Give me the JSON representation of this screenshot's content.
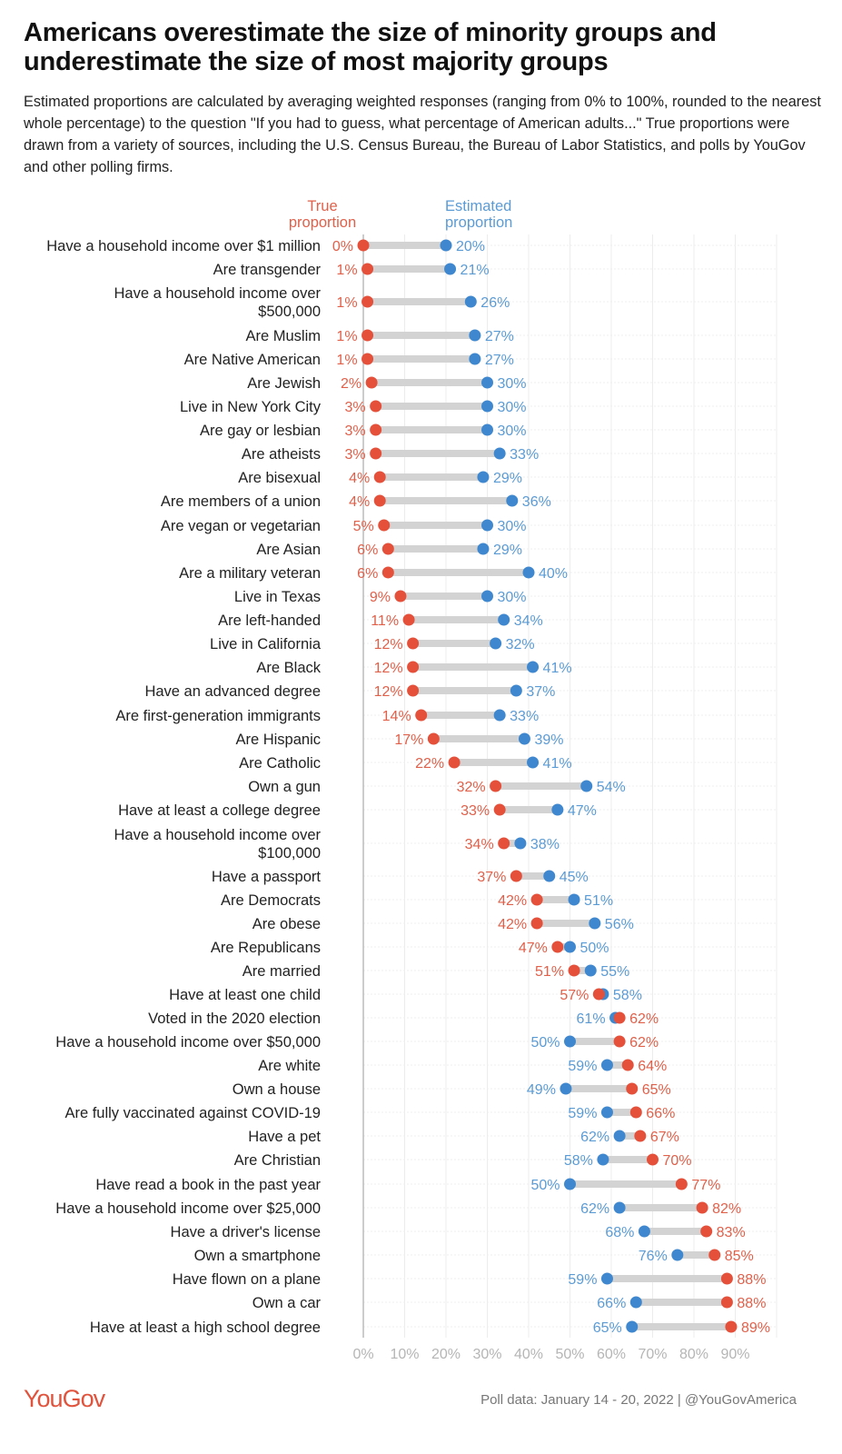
{
  "title": "Americans overestimate the size of minority groups and underestimate the size of most majority groups",
  "subtitle": "Estimated proportions are calculated by averaging weighted responses (ranging from 0% to 100%, rounded to the nearest whole percentage) to the question \"If you had to guess, what percentage of American adults...\" True proportions were drawn from a variety of sources, including the U.S. Census Bureau, the Bureau of Labor Statistics, and polls by YouGov and other polling firms.",
  "footer": {
    "logo": "YouGov",
    "source": "Poll data: January 14 - 20, 2022 | @YouGovAmerica"
  },
  "colors": {
    "true": "#e4503a",
    "estimated": "#3f88cf",
    "bar": "#d3d3d3"
  },
  "chart_data": {
    "type": "dumbbell",
    "legend": {
      "true": [
        "True",
        "proportion"
      ],
      "estimated": [
        "Estimated",
        "proportion"
      ]
    },
    "xlim": [
      0,
      100
    ],
    "ticks": [
      "0%",
      "10%",
      "20%",
      "30%",
      "40%",
      "50%",
      "60%",
      "70%",
      "80%",
      "90%"
    ],
    "categories": [
      [
        "Have a household income over $1 million"
      ],
      [
        "Are transgender"
      ],
      [
        "Have a household income over",
        "$500,000"
      ],
      [
        "Are Muslim"
      ],
      [
        "Are Native American"
      ],
      [
        "Are Jewish"
      ],
      [
        "Live in New York City"
      ],
      [
        "Are gay or lesbian"
      ],
      [
        "Are atheists"
      ],
      [
        "Are bisexual"
      ],
      [
        "Are members of a union"
      ],
      [
        "Are vegan or vegetarian"
      ],
      [
        "Are Asian"
      ],
      [
        "Are a military veteran"
      ],
      [
        "Live in Texas"
      ],
      [
        "Are left-handed"
      ],
      [
        "Live in California"
      ],
      [
        "Are Black"
      ],
      [
        "Have an advanced degree"
      ],
      [
        "Are first-generation immigrants"
      ],
      [
        "Are Hispanic"
      ],
      [
        "Are Catholic"
      ],
      [
        "Own a gun"
      ],
      [
        "Have at least a college degree"
      ],
      [
        "Have a household income over",
        "$100,000"
      ],
      [
        "Have a passport"
      ],
      [
        "Are Democrats"
      ],
      [
        "Are obese"
      ],
      [
        "Are Republicans"
      ],
      [
        "Are married"
      ],
      [
        "Have at least one child"
      ],
      [
        "Voted in the 2020 election"
      ],
      [
        "Have a household income over $50,000"
      ],
      [
        "Are white"
      ],
      [
        "Own a house"
      ],
      [
        "Are fully vaccinated against COVID-19"
      ],
      [
        "Have a pet"
      ],
      [
        "Are Christian"
      ],
      [
        "Have read a book in the past year"
      ],
      [
        "Have a household income over $25,000"
      ],
      [
        "Have a driver's license"
      ],
      [
        "Own a smartphone"
      ],
      [
        "Have flown on a plane"
      ],
      [
        "Own a car"
      ],
      [
        "Have at least a high school degree"
      ]
    ],
    "series": [
      {
        "name": "True proportion",
        "values": [
          0,
          1,
          1,
          1,
          1,
          2,
          3,
          3,
          3,
          4,
          4,
          5,
          6,
          6,
          9,
          11,
          12,
          12,
          12,
          14,
          17,
          22,
          32,
          33,
          34,
          37,
          42,
          42,
          47,
          51,
          57,
          62,
          62,
          64,
          65,
          66,
          67,
          70,
          77,
          82,
          83,
          85,
          88,
          88,
          89
        ]
      },
      {
        "name": "Estimated proportion",
        "values": [
          20,
          21,
          26,
          27,
          27,
          30,
          30,
          30,
          33,
          29,
          36,
          30,
          29,
          40,
          30,
          34,
          32,
          41,
          37,
          33,
          39,
          41,
          54,
          47,
          38,
          45,
          51,
          56,
          50,
          55,
          58,
          61,
          50,
          59,
          49,
          59,
          62,
          58,
          50,
          62,
          68,
          76,
          59,
          66,
          65
        ]
      }
    ]
  }
}
